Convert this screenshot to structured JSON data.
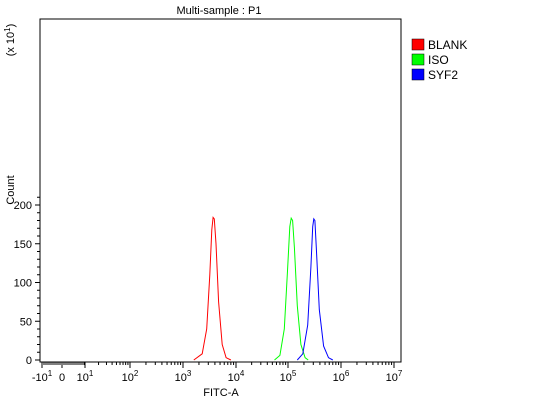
{
  "chart_data": {
    "type": "line",
    "title": "Multi-sample : P1",
    "xlabel": "FITC-A",
    "ylabel": "Count",
    "y_multiplier": {
      "base": "(x 10",
      "exp": "1",
      "close": ")"
    },
    "x_scale": "biexponential-log",
    "x_ticks": [
      {
        "value": -10,
        "base": "-10",
        "exp": "1"
      },
      {
        "value": 0,
        "base": "0",
        "exp": ""
      },
      {
        "value": 10,
        "base": "10",
        "exp": "1"
      },
      {
        "value": 100,
        "base": "10",
        "exp": "2"
      },
      {
        "value": 1000,
        "base": "10",
        "exp": "3"
      },
      {
        "value": 10000,
        "base": "10",
        "exp": "4"
      },
      {
        "value": 100000,
        "base": "10",
        "exp": "5"
      },
      {
        "value": 1000000,
        "base": "10",
        "exp": "6"
      },
      {
        "value": 10000000,
        "base": "10",
        "exp": "7"
      }
    ],
    "y_ticks": [
      "0",
      "50",
      "100",
      "150",
      "200"
    ],
    "ylim": [
      0,
      220
    ],
    "grid": false,
    "legend_position": "right",
    "series": [
      {
        "name": "BLANK",
        "color": "#ff0000",
        "x": [
          1600,
          2300,
          2800,
          3200,
          3500,
          3700,
          3900,
          4200,
          4700,
          5500,
          6500,
          8000
        ],
        "y": [
          0,
          8,
          40,
          110,
          168,
          184,
          182,
          150,
          75,
          20,
          3,
          0
        ]
      },
      {
        "name": "ISO",
        "color": "#00ff00",
        "x": [
          55000,
          70000,
          85000,
          98000,
          108000,
          115000,
          122000,
          132000,
          150000,
          175000,
          210000,
          240000
        ],
        "y": [
          0,
          6,
          40,
          115,
          172,
          183,
          180,
          145,
          70,
          20,
          3,
          0
        ]
      },
      {
        "name": "SYF2",
        "color": "#0000ff",
        "x": [
          150000,
          190000,
          235000,
          270000,
          292000,
          307000,
          322000,
          345000,
          390000,
          470000,
          580000,
          700000
        ],
        "y": [
          0,
          8,
          45,
          120,
          172,
          182,
          180,
          140,
          65,
          18,
          3,
          0
        ]
      }
    ]
  }
}
